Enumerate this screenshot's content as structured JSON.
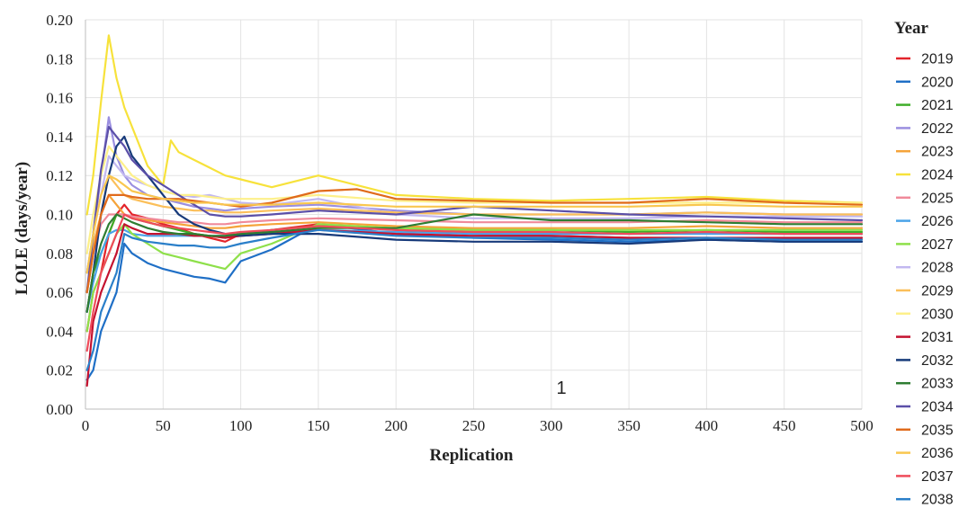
{
  "chart_data": {
    "type": "line",
    "title": "",
    "xlabel": "Replication",
    "ylabel": "LOLE (days/year)",
    "xlim": [
      0,
      500
    ],
    "ylim": [
      0,
      0.2
    ],
    "x_ticks": [
      "0",
      "50",
      "100",
      "150",
      "200",
      "250",
      "300",
      "350",
      "400",
      "450",
      "500"
    ],
    "y_ticks": [
      "0.00",
      "0.02",
      "0.04",
      "0.06",
      "0.08",
      "0.10",
      "0.12",
      "0.14",
      "0.16",
      "0.18",
      "0.20"
    ],
    "grid": true,
    "legend": {
      "title": "Year",
      "position": "right"
    },
    "annotation": "1",
    "series": [
      {
        "name": "2019",
        "color": "#e3242b",
        "x": [
          1,
          5,
          10,
          15,
          20,
          25,
          30,
          40,
          50,
          60,
          70,
          80,
          90,
          100,
          120,
          150,
          200,
          250,
          300,
          350,
          400,
          450,
          500
        ],
        "y": [
          0.04,
          0.06,
          0.07,
          0.09,
          0.1,
          0.105,
          0.1,
          0.098,
          0.095,
          0.093,
          0.09,
          0.088,
          0.086,
          0.09,
          0.092,
          0.095,
          0.092,
          0.09,
          0.089,
          0.088,
          0.088,
          0.087,
          0.087
        ]
      },
      {
        "name": "2020",
        "color": "#1f6fc6",
        "x": [
          1,
          5,
          10,
          15,
          20,
          25,
          30,
          40,
          50,
          60,
          70,
          80,
          90,
          100,
          120,
          150,
          200,
          250,
          300,
          350,
          400,
          450,
          500
        ],
        "y": [
          0.015,
          0.02,
          0.04,
          0.05,
          0.06,
          0.085,
          0.08,
          0.075,
          0.072,
          0.07,
          0.068,
          0.067,
          0.065,
          0.076,
          0.082,
          0.095,
          0.09,
          0.088,
          0.087,
          0.086,
          0.087,
          0.086,
          0.086
        ]
      },
      {
        "name": "2021",
        "color": "#3fae2a",
        "x": [
          1,
          5,
          10,
          15,
          20,
          25,
          30,
          40,
          50,
          60,
          70,
          80,
          90,
          100,
          120,
          150,
          200,
          250,
          300,
          350,
          400,
          450,
          500
        ],
        "y": [
          0.05,
          0.07,
          0.08,
          0.09,
          0.1,
          0.1,
          0.098,
          0.096,
          0.094,
          0.092,
          0.09,
          0.089,
          0.088,
          0.09,
          0.092,
          0.094,
          0.093,
          0.092,
          0.092,
          0.091,
          0.092,
          0.091,
          0.091
        ]
      },
      {
        "name": "2022",
        "color": "#9b8fe0",
        "x": [
          1,
          5,
          10,
          15,
          20,
          25,
          30,
          40,
          50,
          60,
          70,
          80,
          90,
          100,
          120,
          150,
          200,
          250,
          300,
          350,
          400,
          450,
          500
        ],
        "y": [
          0.07,
          0.09,
          0.12,
          0.15,
          0.13,
          0.12,
          0.115,
          0.11,
          0.108,
          0.106,
          0.104,
          0.103,
          0.102,
          0.103,
          0.104,
          0.105,
          0.102,
          0.1,
          0.1,
          0.1,
          0.101,
          0.1,
          0.1
        ]
      },
      {
        "name": "2023",
        "color": "#f5a33a",
        "x": [
          1,
          5,
          10,
          15,
          20,
          25,
          30,
          40,
          50,
          60,
          70,
          80,
          90,
          100,
          120,
          150,
          200,
          250,
          300,
          350,
          400,
          450,
          500
        ],
        "y": [
          0.06,
          0.08,
          0.1,
          0.11,
          0.105,
          0.1,
          0.098,
          0.097,
          0.096,
          0.095,
          0.094,
          0.093,
          0.093,
          0.094,
          0.095,
          0.096,
          0.094,
          0.093,
          0.093,
          0.093,
          0.094,
          0.093,
          0.093
        ]
      },
      {
        "name": "2024",
        "color": "#f7e23b",
        "x": [
          1,
          5,
          10,
          15,
          20,
          25,
          30,
          40,
          50,
          55,
          60,
          70,
          80,
          90,
          100,
          120,
          150,
          200,
          250,
          300,
          350,
          400,
          450,
          500
        ],
        "y": [
          0.1,
          0.12,
          0.158,
          0.192,
          0.17,
          0.155,
          0.145,
          0.125,
          0.115,
          0.138,
          0.132,
          0.128,
          0.124,
          0.12,
          0.118,
          0.114,
          0.12,
          0.11,
          0.108,
          0.107,
          0.108,
          0.109,
          0.107,
          0.106
        ]
      },
      {
        "name": "2025",
        "color": "#f08a9a",
        "x": [
          1,
          5,
          10,
          15,
          20,
          25,
          30,
          40,
          50,
          60,
          70,
          80,
          90,
          100,
          120,
          150,
          200,
          250,
          300,
          350,
          400,
          450,
          500
        ],
        "y": [
          0.06,
          0.08,
          0.095,
          0.1,
          0.1,
          0.1,
          0.099,
          0.098,
          0.097,
          0.096,
          0.096,
          0.095,
          0.095,
          0.096,
          0.097,
          0.098,
          0.097,
          0.096,
          0.096,
          0.096,
          0.097,
          0.096,
          0.096
        ]
      },
      {
        "name": "2026",
        "color": "#4aa3e8",
        "x": [
          1,
          5,
          10,
          15,
          20,
          25,
          30,
          40,
          50,
          60,
          70,
          80,
          90,
          100,
          120,
          150,
          200,
          250,
          300,
          350,
          400,
          450,
          500
        ],
        "y": [
          0.05,
          0.065,
          0.08,
          0.09,
          0.092,
          0.092,
          0.09,
          0.089,
          0.089,
          0.089,
          0.089,
          0.089,
          0.089,
          0.09,
          0.091,
          0.092,
          0.091,
          0.09,
          0.09,
          0.09,
          0.09,
          0.09,
          0.09
        ]
      },
      {
        "name": "2027",
        "color": "#8ee04a",
        "x": [
          1,
          5,
          10,
          15,
          20,
          25,
          30,
          40,
          50,
          60,
          70,
          80,
          90,
          100,
          120,
          150,
          200,
          250,
          300,
          350,
          400,
          450,
          500
        ],
        "y": [
          0.04,
          0.06,
          0.07,
          0.08,
          0.09,
          0.095,
          0.09,
          0.085,
          0.08,
          0.078,
          0.076,
          0.074,
          0.072,
          0.08,
          0.085,
          0.095,
          0.093,
          0.092,
          0.092,
          0.092,
          0.092,
          0.092,
          0.092
        ]
      },
      {
        "name": "2028",
        "color": "#c2b8f0",
        "x": [
          1,
          5,
          10,
          15,
          20,
          25,
          30,
          40,
          50,
          60,
          70,
          80,
          90,
          100,
          120,
          150,
          200,
          250,
          300,
          350,
          400,
          450,
          500
        ],
        "y": [
          0.07,
          0.09,
          0.11,
          0.13,
          0.125,
          0.12,
          0.118,
          0.115,
          0.112,
          0.11,
          0.109,
          0.11,
          0.108,
          0.106,
          0.105,
          0.108,
          0.1,
          0.098,
          0.098,
          0.098,
          0.099,
          0.099,
          0.099
        ]
      },
      {
        "name": "2029",
        "color": "#fbbf5a",
        "x": [
          1,
          5,
          10,
          15,
          20,
          25,
          30,
          40,
          50,
          60,
          70,
          80,
          90,
          100,
          120,
          150,
          200,
          250,
          300,
          350,
          400,
          450,
          500
        ],
        "y": [
          0.06,
          0.085,
          0.1,
          0.12,
          0.115,
          0.11,
          0.108,
          0.106,
          0.104,
          0.103,
          0.102,
          0.102,
          0.101,
          0.101,
          0.102,
          0.103,
          0.101,
          0.1,
          0.1,
          0.1,
          0.101,
          0.1,
          0.1
        ]
      },
      {
        "name": "2030",
        "color": "#fdf08a",
        "x": [
          1,
          5,
          10,
          15,
          20,
          25,
          30,
          40,
          50,
          60,
          70,
          80,
          90,
          100,
          120,
          150,
          200,
          250,
          300,
          350,
          400,
          450,
          500
        ],
        "y": [
          0.08,
          0.1,
          0.12,
          0.135,
          0.13,
          0.125,
          0.12,
          0.115,
          0.112,
          0.11,
          0.11,
          0.109,
          0.108,
          0.108,
          0.108,
          0.11,
          0.107,
          0.106,
          0.106,
          0.106,
          0.106,
          0.106,
          0.106
        ]
      },
      {
        "name": "2031",
        "color": "#c4122f",
        "x": [
          1,
          5,
          10,
          15,
          20,
          25,
          30,
          40,
          50,
          60,
          70,
          80,
          90,
          100,
          120,
          150,
          200,
          250,
          300,
          350,
          400,
          450,
          500
        ],
        "y": [
          0.012,
          0.045,
          0.06,
          0.07,
          0.08,
          0.095,
          0.093,
          0.09,
          0.09,
          0.09,
          0.089,
          0.089,
          0.088,
          0.089,
          0.09,
          0.092,
          0.09,
          0.089,
          0.089,
          0.088,
          0.088,
          0.088,
          0.088
        ]
      },
      {
        "name": "2032",
        "color": "#173a7a",
        "x": [
          1,
          5,
          10,
          15,
          20,
          25,
          30,
          40,
          50,
          60,
          70,
          80,
          90,
          100,
          120,
          150,
          200,
          250,
          300,
          350,
          400,
          450,
          500
        ],
        "y": [
          0.05,
          0.07,
          0.1,
          0.12,
          0.135,
          0.14,
          0.13,
          0.12,
          0.11,
          0.1,
          0.095,
          0.092,
          0.09,
          0.089,
          0.09,
          0.09,
          0.087,
          0.086,
          0.086,
          0.085,
          0.087,
          0.086,
          0.086
        ]
      },
      {
        "name": "2033",
        "color": "#2e7d32",
        "x": [
          1,
          5,
          10,
          15,
          20,
          25,
          30,
          40,
          50,
          60,
          70,
          80,
          90,
          100,
          120,
          150,
          200,
          250,
          300,
          350,
          400,
          450,
          500
        ],
        "y": [
          0.05,
          0.07,
          0.085,
          0.095,
          0.1,
          0.098,
          0.096,
          0.093,
          0.091,
          0.09,
          0.09,
          0.089,
          0.089,
          0.09,
          0.091,
          0.093,
          0.093,
          0.1,
          0.097,
          0.097,
          0.096,
          0.095,
          0.095
        ]
      },
      {
        "name": "2034",
        "color": "#5b4fa8",
        "x": [
          1,
          5,
          10,
          15,
          20,
          25,
          30,
          40,
          50,
          60,
          70,
          80,
          90,
          100,
          120,
          150,
          200,
          250,
          300,
          350,
          400,
          450,
          500
        ],
        "y": [
          0.06,
          0.09,
          0.123,
          0.145,
          0.14,
          0.135,
          0.128,
          0.12,
          0.115,
          0.11,
          0.105,
          0.1,
          0.099,
          0.099,
          0.1,
          0.102,
          0.1,
          0.104,
          0.102,
          0.1,
          0.099,
          0.098,
          0.097
        ]
      },
      {
        "name": "2035",
        "color": "#e06a1b",
        "x": [
          1,
          5,
          10,
          15,
          20,
          25,
          30,
          40,
          50,
          60,
          70,
          80,
          90,
          100,
          120,
          150,
          175,
          200,
          250,
          300,
          350,
          400,
          450,
          500
        ],
        "y": [
          0.06,
          0.08,
          0.1,
          0.11,
          0.11,
          0.11,
          0.109,
          0.108,
          0.108,
          0.108,
          0.107,
          0.106,
          0.105,
          0.104,
          0.106,
          0.112,
          0.113,
          0.108,
          0.107,
          0.106,
          0.106,
          0.108,
          0.106,
          0.105
        ]
      },
      {
        "name": "2036",
        "color": "#f9c74f",
        "x": [
          1,
          5,
          10,
          15,
          20,
          25,
          30,
          40,
          50,
          60,
          70,
          80,
          90,
          100,
          120,
          150,
          200,
          250,
          300,
          350,
          400,
          450,
          500
        ],
        "y": [
          0.07,
          0.09,
          0.11,
          0.12,
          0.118,
          0.115,
          0.112,
          0.11,
          0.108,
          0.107,
          0.106,
          0.106,
          0.105,
          0.105,
          0.105,
          0.106,
          0.104,
          0.104,
          0.104,
          0.104,
          0.105,
          0.104,
          0.104
        ]
      },
      {
        "name": "2037",
        "color": "#ef4b5a",
        "x": [
          1,
          5,
          10,
          15,
          20,
          25,
          30,
          40,
          50,
          60,
          70,
          80,
          90,
          100,
          120,
          150,
          200,
          250,
          300,
          350,
          400,
          450,
          500
        ],
        "y": [
          0.03,
          0.05,
          0.07,
          0.08,
          0.09,
          0.1,
          0.098,
          0.096,
          0.094,
          0.093,
          0.092,
          0.091,
          0.09,
          0.091,
          0.092,
          0.094,
          0.092,
          0.091,
          0.091,
          0.09,
          0.091,
          0.09,
          0.09
        ]
      },
      {
        "name": "2038",
        "color": "#2a7fc9",
        "x": [
          1,
          5,
          10,
          15,
          20,
          25,
          30,
          40,
          50,
          60,
          70,
          80,
          90,
          100,
          120,
          150,
          200,
          250,
          300,
          350,
          400,
          450,
          500
        ],
        "y": [
          0.02,
          0.03,
          0.05,
          0.06,
          0.07,
          0.09,
          0.088,
          0.086,
          0.085,
          0.084,
          0.084,
          0.083,
          0.083,
          0.085,
          0.088,
          0.092,
          0.089,
          0.088,
          0.088,
          0.087,
          0.088,
          0.087,
          0.087
        ]
      }
    ]
  }
}
